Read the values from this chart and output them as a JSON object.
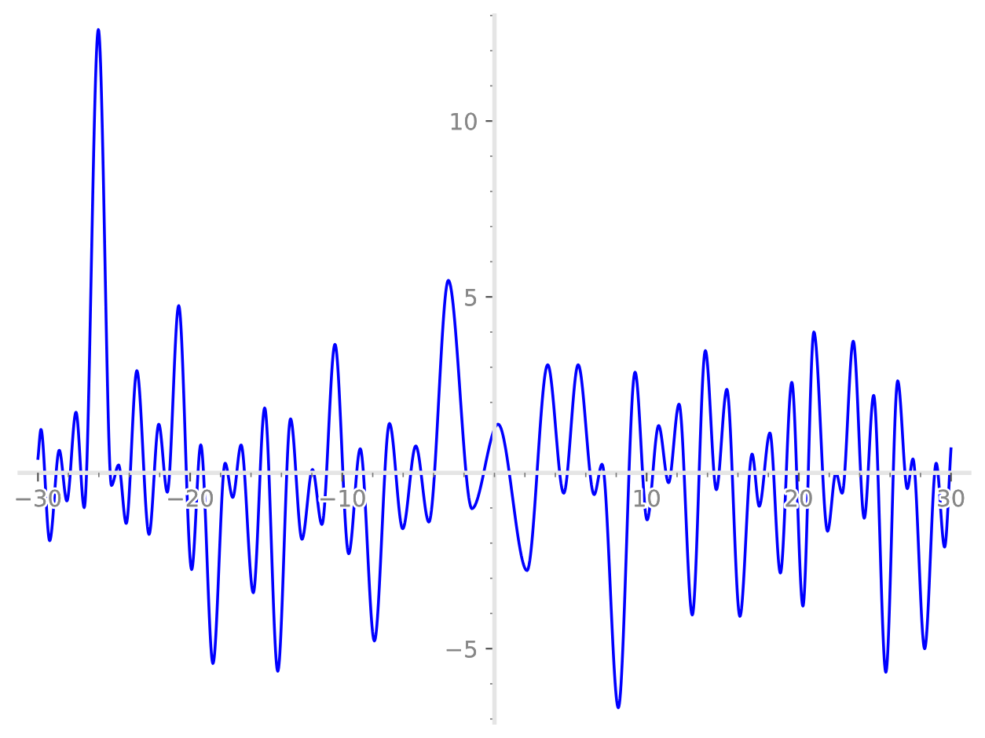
{
  "chart_data": {
    "type": "line",
    "series": [
      {
        "color": "#0000ff",
        "x": [
          -30,
          -29.8,
          -29.23,
          -28.6,
          -28.1,
          -27.5,
          -26.96,
          -26.03,
          -25.17,
          -24.7,
          -24.2,
          -23.5,
          -22.7,
          -22.06,
          -21.5,
          -20.75,
          -19.9,
          -19.3,
          -18.5,
          -17.7,
          -17.2,
          -16.65,
          -15.85,
          -15.1,
          -14.24,
          -13.4,
          -12.65,
          -11.96,
          -11.34,
          -10.48,
          -9.58,
          -8.82,
          -7.89,
          -6.9,
          -6.03,
          -5.17,
          -4.31,
          -3.03,
          -1.48,
          0.24,
          2.14,
          3.5,
          4.55,
          5.5,
          6.55,
          7.07,
          8.14,
          9.24,
          10.03,
          10.79,
          11.44,
          12.13,
          13.0,
          13.86,
          14.58,
          15.27,
          16.13,
          16.93,
          17.4,
          18.1,
          18.79,
          19.54,
          20.27,
          20.99,
          21.89,
          22.44,
          22.85,
          23.58,
          24.3,
          24.92,
          25.72,
          26.5,
          27.13,
          27.5,
          28.27,
          29.03,
          29.58,
          30
        ],
        "values": [
          0.41,
          1.23,
          -1.93,
          0.64,
          -0.8,
          1.72,
          -0.99,
          12.6,
          -0.36,
          0.22,
          -1.44,
          2.9,
          -1.75,
          1.38,
          -0.55,
          4.75,
          -2.75,
          0.79,
          -5.42,
          0.27,
          -0.7,
          0.79,
          -3.41,
          1.84,
          -5.64,
          1.53,
          -1.89,
          0.09,
          -1.47,
          3.65,
          -2.3,
          0.68,
          -4.78,
          1.4,
          -1.59,
          0.76,
          -1.4,
          5.47,
          -1.02,
          1.38,
          -2.78,
          3.07,
          -0.58,
          3.07,
          -0.62,
          0.24,
          -6.68,
          2.86,
          -1.34,
          1.34,
          -0.28,
          1.95,
          -4.04,
          3.47,
          -0.48,
          2.37,
          -4.08,
          0.53,
          -0.95,
          1.13,
          -2.85,
          2.57,
          -3.79,
          4.0,
          -1.66,
          0.0,
          -0.58,
          3.74,
          -1.29,
          2.2,
          -5.67,
          2.61,
          -0.45,
          0.39,
          -5.0,
          0.27,
          -2.11,
          0.68
        ]
      }
    ],
    "xlim": [
      -31.2,
      31.2
    ],
    "ylim": [
      -7.1,
      13
    ],
    "xticks": [
      -30,
      -20,
      -10,
      10,
      20,
      30
    ],
    "yticks": [
      -5,
      5,
      10
    ],
    "grid": false,
    "legend": false,
    "marker": "none",
    "line_style": "solid"
  }
}
